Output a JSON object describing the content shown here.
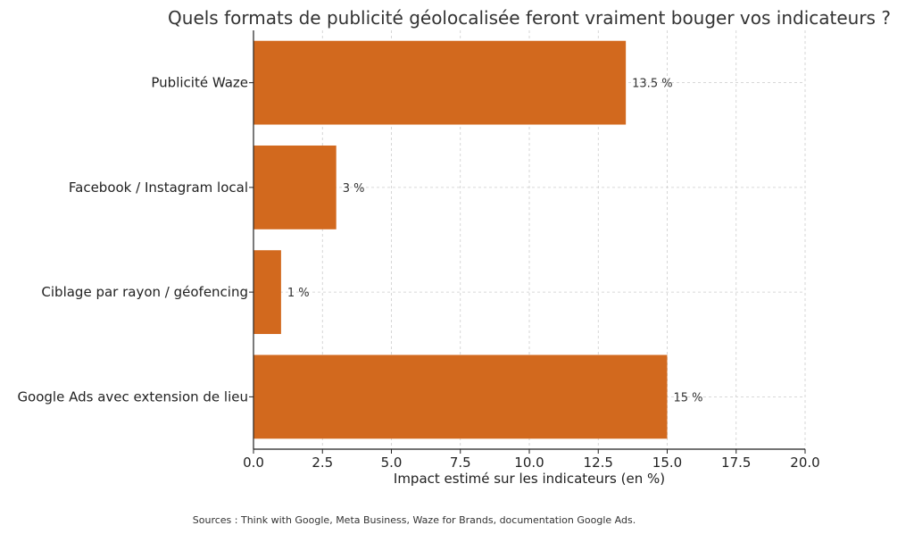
{
  "chart_data": {
    "type": "bar",
    "orientation": "horizontal",
    "title": "Quels formats de publicité géolocalisée feront vraiment bouger vos indicateurs ?",
    "categories": [
      "Publicité Waze",
      "Facebook / Instagram local",
      "Ciblage par rayon / géofencing",
      "Google Ads avec extension de lieu"
    ],
    "values": [
      13.5,
      3,
      1,
      15
    ],
    "data_labels": [
      "13.5 %",
      "3 %",
      "1 %",
      "15 %"
    ],
    "xlabel": "Impact estimé sur les indicateurs (en %)",
    "ylabel": "",
    "xlim": [
      0,
      20
    ],
    "x_ticks": [
      "0.0",
      "2.5",
      "5.0",
      "7.5",
      "10.0",
      "12.5",
      "15.0",
      "17.5",
      "20.0"
    ],
    "grid": true,
    "bar_color": "#d2691e",
    "source_note": "Sources : Think with Google, Meta Business, Waze for Brands, documentation Google Ads."
  }
}
